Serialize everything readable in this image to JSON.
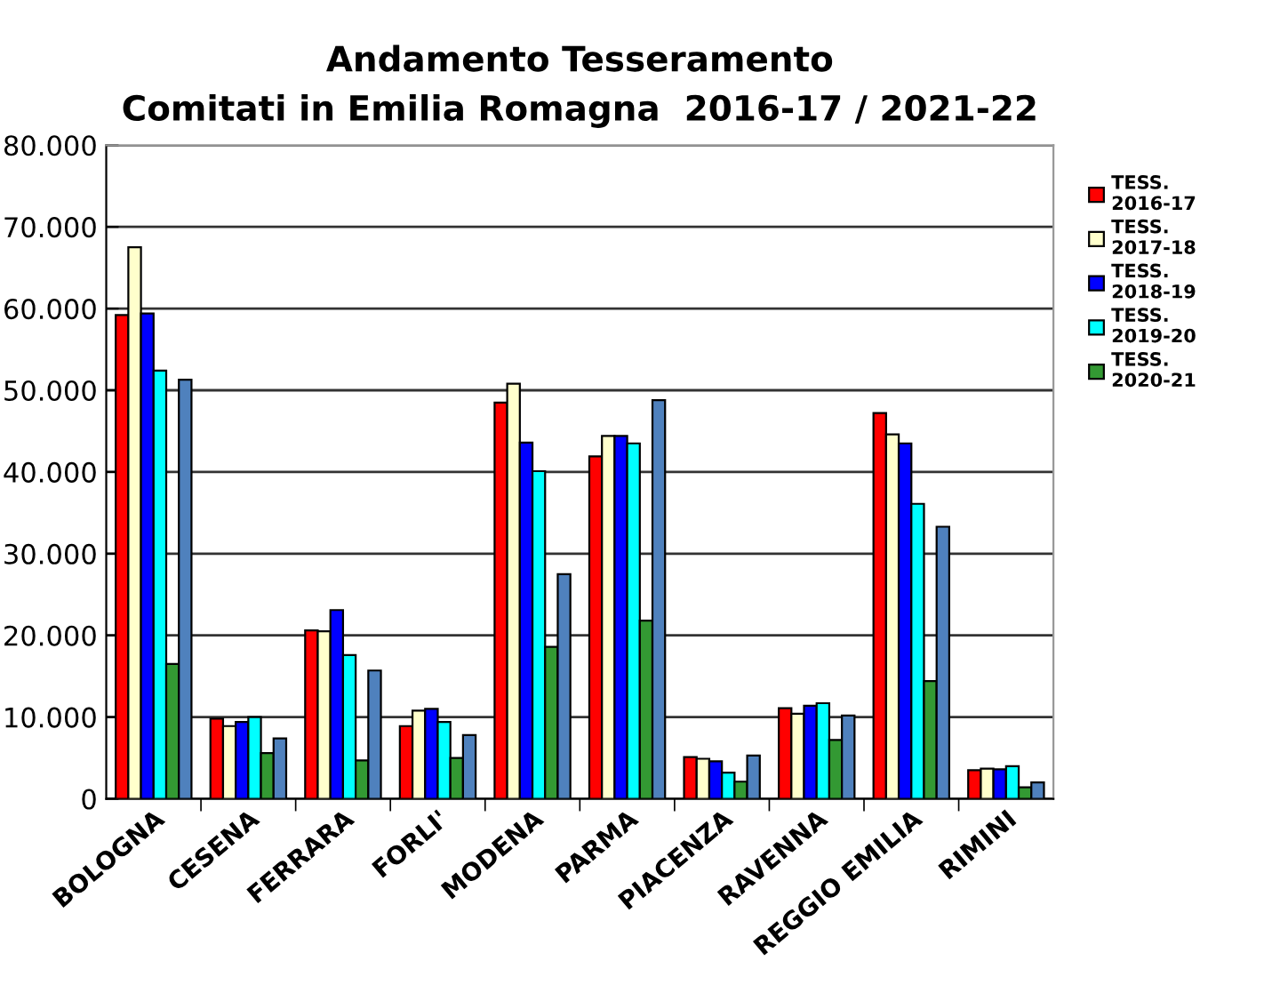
{
  "chart_data": {
    "type": "bar",
    "title": "Andamento Tesseramento\nComitati in Emilia Romagna  2016-17 / 2021-22",
    "categories": [
      "BOLOGNA",
      "CESENA",
      "FERRARA",
      "FORLI'",
      "MODENA",
      "PARMA",
      "PIACENZA",
      "RAVENNA",
      "REGGIO EMILIA",
      "RIMINI"
    ],
    "series": [
      {
        "name": "TESS.\n2016-17",
        "color": "#ff0000",
        "values": [
          59200,
          9800,
          20600,
          8900,
          48500,
          41900,
          5100,
          11100,
          47200,
          3500
        ]
      },
      {
        "name": "TESS.\n2017-18",
        "color": "#ffffcc",
        "values": [
          67500,
          8900,
          20500,
          10800,
          50800,
          44400,
          4900,
          10400,
          44600,
          3700
        ]
      },
      {
        "name": "TESS.\n2018-19",
        "color": "#0000ff",
        "values": [
          59400,
          9400,
          23100,
          11000,
          43600,
          44400,
          4600,
          11400,
          43500,
          3600
        ]
      },
      {
        "name": "TESS.\n2019-20",
        "color": "#00ffff",
        "values": [
          52400,
          10000,
          17600,
          9400,
          40100,
          43500,
          3200,
          11700,
          36100,
          4000
        ]
      },
      {
        "name": "TESS.\n2020-21",
        "color": "#339933",
        "values": [
          16500,
          5600,
          4700,
          5000,
          18600,
          21800,
          2100,
          7200,
          14400,
          1400
        ]
      },
      {
        "color": "#4f81bd",
        "values": [
          51300,
          7400,
          15700,
          7800,
          27500,
          48800,
          5300,
          10200,
          33300,
          2000
        ]
      }
    ],
    "ylim": [
      0,
      80000
    ],
    "yticks": [
      {
        "value": 0,
        "label": "0"
      },
      {
        "value": 10000,
        "label": "10.000"
      },
      {
        "value": 20000,
        "label": "20.000"
      },
      {
        "value": 30000,
        "label": "30.000"
      },
      {
        "value": 40000,
        "label": "40.000"
      },
      {
        "value": 50000,
        "label": "50.000"
      },
      {
        "value": 60000,
        "label": "60.000"
      },
      {
        "value": 70000,
        "label": "70.000"
      },
      {
        "value": 80000,
        "label": "80.000"
      }
    ],
    "grid": "y",
    "legend": "right"
  }
}
